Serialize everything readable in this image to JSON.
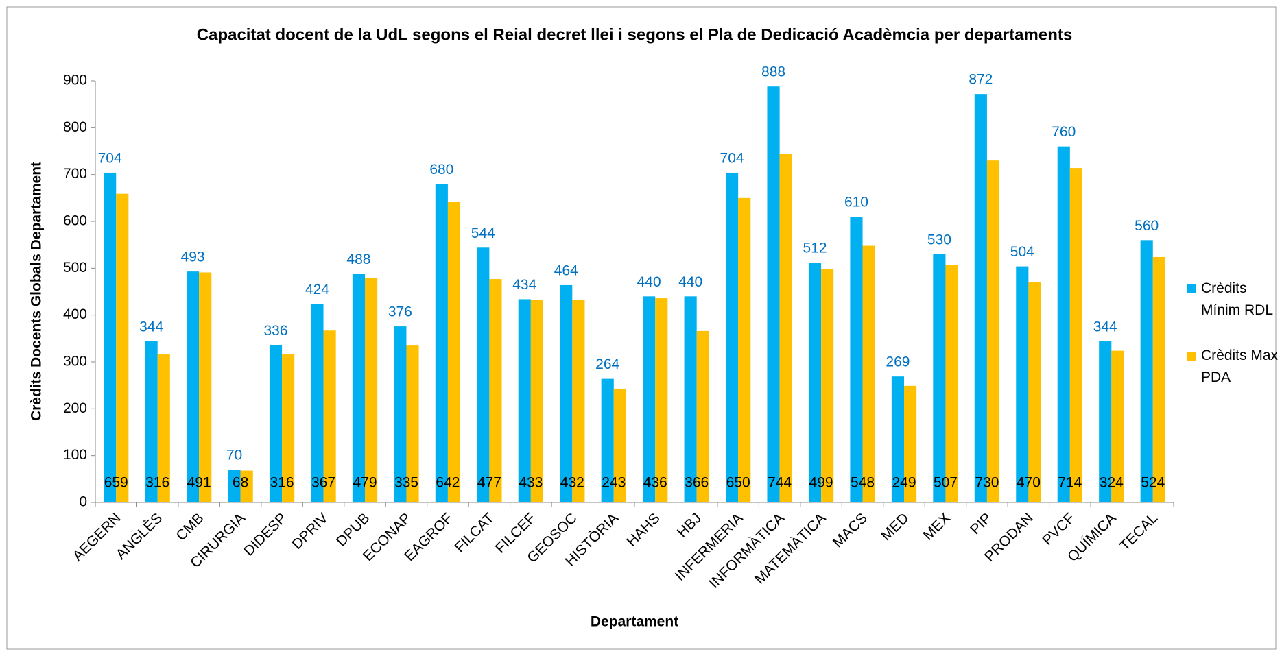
{
  "chart_data": {
    "type": "bar",
    "title": "Capacitat docent de la UdL segons el Reial decret llei i segons el Pla de Dedicació Acadèmcia per departaments",
    "x_label": "Departament",
    "y_label": "Crèdits Docents Globals Departament",
    "categories": [
      "AEGERN",
      "ANGLÈS",
      "CMB",
      "CIRURGIA",
      "DIDESP",
      "DPRIV",
      "DPUB",
      "ECONAP",
      "EAGROF",
      "FILCAT",
      "FILCEF",
      "GEOSOC",
      "HISTÒRIA",
      "HAHS",
      "HBJ",
      "INFERMERIA",
      "INFORMÀTICA",
      "MATEMÀTICA",
      "MACS",
      "MED",
      "MEX",
      "PIP",
      "PRODAN",
      "PVCF",
      "QUÍMICA",
      "TECAL"
    ],
    "series": [
      {
        "name": "Crèdits Mínim RDL",
        "color": "#00b0f0",
        "label_color": "#0070c0",
        "values": [
          704,
          344,
          493,
          70,
          336,
          424,
          488,
          376,
          680,
          544,
          434,
          464,
          264,
          440,
          440,
          704,
          888,
          512,
          610,
          269,
          530,
          872,
          504,
          760,
          344,
          560
        ]
      },
      {
        "name": "Crèdits Max PDA",
        "color": "#ffc000",
        "label_color": "#000000",
        "values": [
          659,
          316,
          491,
          68,
          316,
          367,
          479,
          335,
          642,
          477,
          433,
          432,
          243,
          436,
          366,
          650,
          744,
          499,
          548,
          249,
          507,
          730,
          470,
          714,
          324,
          524
        ]
      }
    ],
    "ylim": [
      0,
      900
    ],
    "yticks": [
      0,
      100,
      200,
      300,
      400,
      500,
      600,
      700,
      800,
      900
    ],
    "grid": false,
    "legend": "right"
  }
}
